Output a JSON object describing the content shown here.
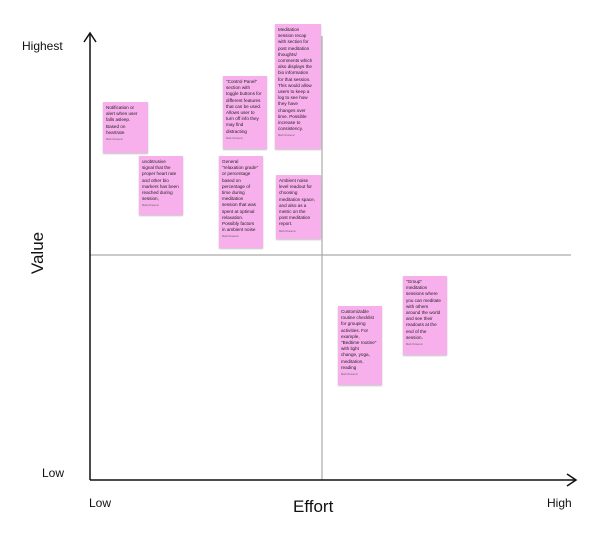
{
  "axes": {
    "y_title": "Value",
    "y_high": "Highest",
    "y_low": "Low",
    "x_title": "Effort",
    "x_low": "Low",
    "x_high": "High",
    "line_color": "#111111",
    "divider_color": "#aaaaaa"
  },
  "note_color": "#f8b0ec",
  "notes": [
    {
      "text": "Notification or\nalert when user\nfalls asleep.\nBased on\nheartrate",
      "author": "Mark Rosaoun"
    },
    {
      "text": "unobtrusive\nsignal that the\nproper heart rate\nand other bio\nmarkers has been\nreached during\nsession,",
      "author": "Mark Rosaoun"
    },
    {
      "text": "\"Control Panel\"\nsection with\ntoggle buttons for\ndifferent features\nthat can be used.\nAllows user to\nturn off info they\nmay find\ndistracting",
      "author": "Mark Rosaoun"
    },
    {
      "text": "General\n\"relaxation grade\"\nor percentage\nbased on\npercentage of\ntime during\nmeditation\nsession that was\nspent at optimal\nrelaxation.\nPossibly factors\nin ambient noise",
      "author": "Mark Rosaoun"
    },
    {
      "text": "Meditation\nsession recap\nwith section for\npost meditation\nthoughts/\ncomments which\nalso displays the\nbio information\nfor that session.\nThis would allow\nusers to keep a\nlog to see how\nthey have\nchanges over\ntime. Possible\nincrease to\nconsistency.",
      "author": "Mark Rosaoun"
    },
    {
      "text": "Ambient noise\nlevel readout for\nchoosing\nmeditation space,\nand also as a\nmetric on the\npost meditation\nreport.",
      "author": "Mark Rosaoun"
    },
    {
      "text": "Customizable\nroutine checklist\nfor grouping\nactivities. For\nexample,\n\"Bedtime routine\"\nwith light\nchange, yoga,\nmeditation,\nreading",
      "author": "Mark Rosaoun"
    },
    {
      "text": "\"Group\"\nmeditation\nsessions where\nyou can meditate\nwith others\naround the world\nand see their\nreadouts at the\nend of the\nsession.",
      "author": "Mark Rosaoun"
    }
  ]
}
